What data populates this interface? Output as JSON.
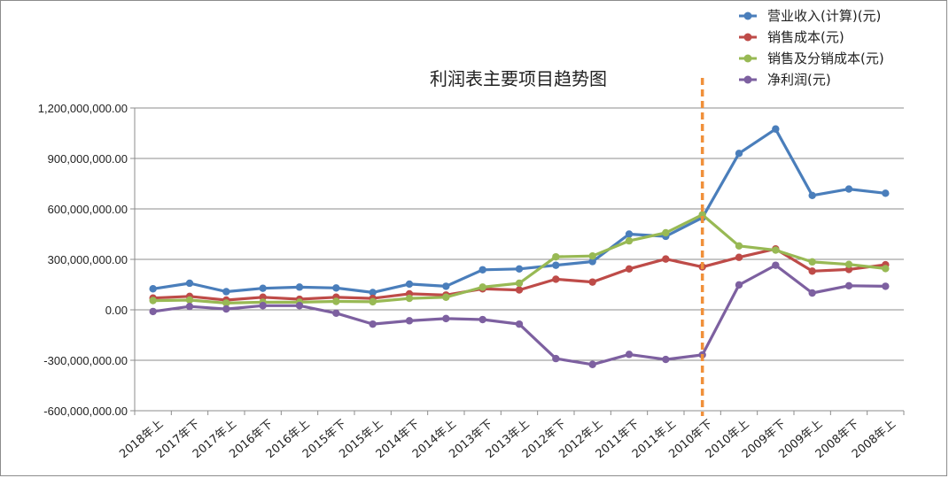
{
  "chart_data": {
    "type": "line",
    "title": "利润表主要项目趋势图",
    "xlabel": "",
    "ylabel": "",
    "ylim": [
      -600000000,
      1200000000
    ],
    "yticks": [
      "1,200,000,000.00",
      "900,000,000.00",
      "600,000,000.00",
      "300,000,000.00",
      "0.00",
      "-300,000,000.00",
      "-600,000,000.00"
    ],
    "ytick_values": [
      1200000000,
      900000000,
      600000000,
      300000000,
      0,
      -300000000,
      -600000000
    ],
    "grid": true,
    "legend_position": "top-right",
    "marker_line_category": "2010年下",
    "categories": [
      "2018年上",
      "2017年下",
      "2017年上",
      "2016年下",
      "2016年上",
      "2015年下",
      "2015年上",
      "2014年下",
      "2014年上",
      "2013年下",
      "2013年上",
      "2012年下",
      "2012年上",
      "2011年下",
      "2011年上",
      "2010年下",
      "2010年上",
      "2009年下",
      "2009年上",
      "2008年下",
      "2008年上"
    ],
    "series": [
      {
        "name": "营业收入(计算)(元)",
        "color": "#4a7ebb",
        "values": [
          125000000,
          158000000,
          108000000,
          128000000,
          135000000,
          130000000,
          103000000,
          153000000,
          140000000,
          238000000,
          243000000,
          265000000,
          287000000,
          450000000,
          437000000,
          548000000,
          930000000,
          1075000000,
          680000000,
          718000000,
          693000000
        ]
      },
      {
        "name": "销售成本(元)",
        "color": "#be4b48",
        "values": [
          70000000,
          80000000,
          58000000,
          75000000,
          63000000,
          75000000,
          68000000,
          95000000,
          88000000,
          125000000,
          118000000,
          182000000,
          165000000,
          243000000,
          302000000,
          255000000,
          312000000,
          362000000,
          230000000,
          240000000,
          268000000
        ]
      },
      {
        "name": "销售及分销成本(元)",
        "color": "#98b954",
        "values": [
          55000000,
          58000000,
          40000000,
          45000000,
          45000000,
          50000000,
          48000000,
          68000000,
          75000000,
          135000000,
          158000000,
          315000000,
          320000000,
          410000000,
          458000000,
          565000000,
          380000000,
          355000000,
          285000000,
          270000000,
          245000000
        ]
      },
      {
        "name": "净利润(元)",
        "color": "#7d60a0",
        "values": [
          -10000000,
          20000000,
          5000000,
          25000000,
          25000000,
          -20000000,
          -85000000,
          -65000000,
          -52000000,
          -58000000,
          -85000000,
          -290000000,
          -325000000,
          -265000000,
          -295000000,
          -268000000,
          148000000,
          265000000,
          100000000,
          143000000,
          140000000
        ]
      }
    ]
  }
}
